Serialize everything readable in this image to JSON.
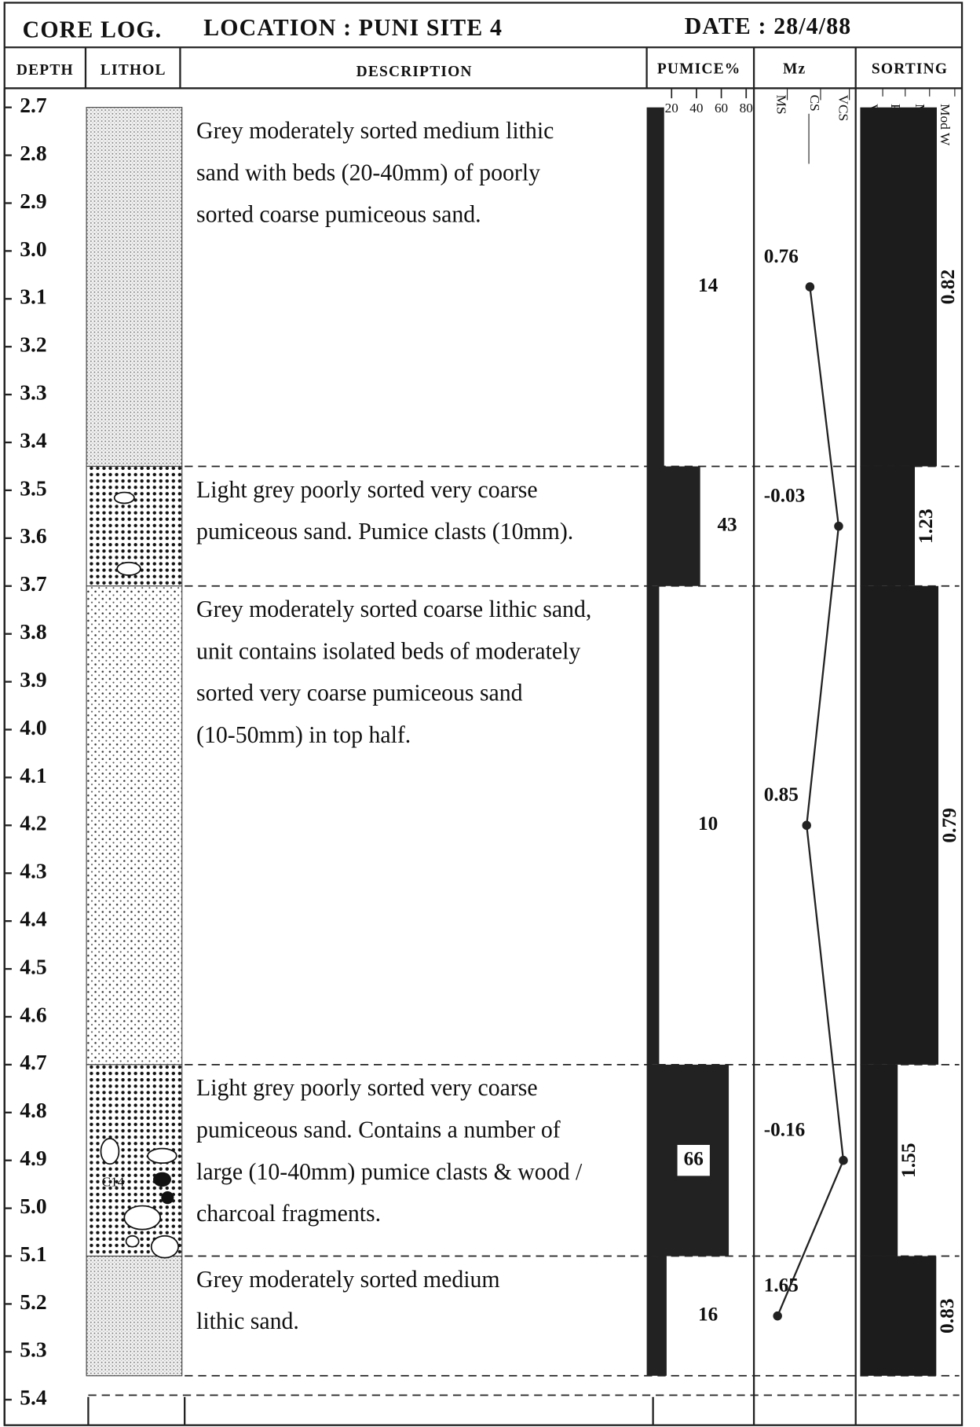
{
  "header": {
    "title": "CORE LOG.",
    "location": "LOCATION : PUNI SITE 4",
    "date": "DATE : 28/4/88"
  },
  "columns": {
    "depth": "DEPTH",
    "lithology": "LITHOL",
    "description": "DESCRIPTION",
    "pumice": "PUMICE%",
    "mz": "Mz",
    "sorting": "SORTING"
  },
  "depth_lim": [
    2.7,
    5.4
  ],
  "depth_ticks": [
    2.7,
    2.8,
    2.9,
    {
      "value": 3,
      "label": "3.0"
    },
    3.1,
    3.2,
    3.3,
    3.4,
    3.5,
    3.6,
    3.7,
    3.8,
    3.9,
    {
      "value": 4,
      "label": "4.0"
    },
    4.1,
    4.2,
    4.3,
    4.4,
    4.5,
    4.6,
    4.7,
    4.8,
    4.9,
    {
      "value": 5,
      "label": "5.0"
    },
    5.1,
    5.2,
    5.3,
    5.4
  ],
  "pumice_lim": [
    0,
    100
  ],
  "pumice_ticks": [
    20,
    40,
    60,
    80
  ],
  "mz_lim": [
    2.3,
    -0.45
  ],
  "mz_classes": [
    "MS",
    "CS",
    "VCS"
  ],
  "sorting_lim": [
    2.25,
    0.4
  ],
  "sorting_classes": [
    "V Poor",
    "Poor",
    "Mod",
    "Mod W"
  ],
  "lithology_note": "C14",
  "units": [
    {
      "top": 2.7,
      "bottom": 3.45,
      "description": [
        "Grey moderately sorted medium lithic",
        "sand with beds (20-40mm) of poorly",
        "sorted coarse pumiceous sand."
      ],
      "pumice": 14,
      "mz": 0.76,
      "sorting": 0.82
    },
    {
      "top": 3.45,
      "bottom": 3.7,
      "description": [
        "Light grey poorly sorted very coarse",
        "pumiceous sand. Pumice clasts (10mm)."
      ],
      "pumice": 43,
      "mz": -0.03,
      "sorting": 1.23
    },
    {
      "top": 3.7,
      "bottom": 4.7,
      "description": [
        "Grey moderately sorted coarse lithic sand,",
        "unit contains isolated beds of moderately",
        "sorted very coarse pumiceous sand",
        "(10-50mm) in top half."
      ],
      "pumice": 10,
      "mz": 0.85,
      "sorting": 0.79
    },
    {
      "top": 4.7,
      "bottom": 5.1,
      "description": [
        "Light grey poorly sorted very coarse",
        "pumiceous sand. Contains a number of",
        "large (10-40mm) pumice clasts & wood /",
        "charcoal fragments."
      ],
      "pumice": 66,
      "mz": -0.16,
      "sorting": 1.55
    },
    {
      "top": 5.1,
      "bottom": 5.35,
      "description": [
        "Grey moderately sorted medium",
        "lithic sand."
      ],
      "pumice": 16,
      "mz": 1.65,
      "sorting": 0.83
    }
  ]
}
